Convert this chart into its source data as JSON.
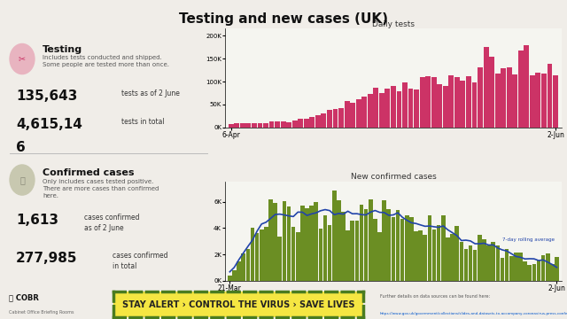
{
  "title": "Testing and new cases (UK)",
  "bg_color": "#f0ede8",
  "testing_header": "Testing",
  "testing_subtext": "Includes tests conducted and shipped.\nSome people are tested more than once.",
  "testing_stat1_num": "135,643",
  "testing_stat1_label": "tests as of 2 June",
  "testing_stat2_num_line1": "4,615,14",
  "testing_stat2_num_line2": "6",
  "testing_stat2_label": "tests in total",
  "cases_header": "Confirmed cases",
  "cases_subtext": "Only includes cases tested positive.\nThere are more cases than confirmed\nhere.",
  "cases_stat1_num": "1,613",
  "cases_stat1_label": "cases confirmed\nas of 2 June",
  "cases_stat2_num": "277,985",
  "cases_stat2_label": "cases confirmed\nin total",
  "daily_tests_title": "Daily tests",
  "daily_tests_bar_color": "#cc3366",
  "daily_tests_yticks": [
    "0K",
    "50K",
    "100K",
    "150K",
    "200K"
  ],
  "daily_tests_ytick_vals": [
    0,
    50000,
    100000,
    150000,
    200000
  ],
  "daily_tests_xlabels": [
    "6-Apr",
    "2-Jun"
  ],
  "new_cases_title": "New confirmed cases",
  "new_cases_bar_color": "#6b8e23",
  "new_cases_line_color": "#2244aa",
  "new_cases_line_label": "7-day rolling average",
  "new_cases_yticks": [
    "0K",
    "2K",
    "4K",
    "6K"
  ],
  "new_cases_ytick_vals": [
    0,
    2000,
    4000,
    6000
  ],
  "new_cases_xlabels": [
    "21-Mar",
    "2-Jun"
  ],
  "banner_text": "STAY ALERT › CONTROL THE VIRUS › SAVE LIVES",
  "banner_bg": "#f5e642",
  "banner_fg": "#222222",
  "banner_border": "#4a7c20",
  "footer_prefix": "Further details on data sources can be found here:",
  "footer_url": "https://www.gov.uk/government/collections/slides-and-datasets-to-accompany-coronavirus-press-conferences"
}
